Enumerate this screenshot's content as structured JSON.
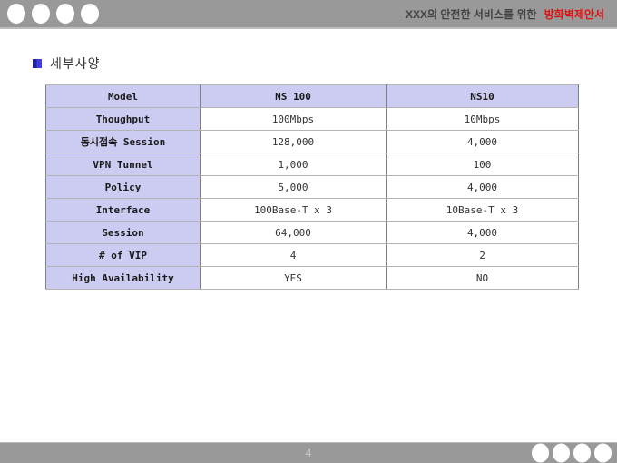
{
  "slide": {
    "header": {
      "title_prefix": "XXX의 안전한 서비스를 위한",
      "title_highlight": "방화벽제안서"
    },
    "section": {
      "title": "세부사양"
    },
    "table": {
      "columns": [
        "Model",
        "NS 100",
        "NS10"
      ],
      "rows": [
        [
          "Thoughput",
          "100Mbps",
          "10Mbps"
        ],
        [
          "동시접속 Session",
          "128,000",
          "4,000"
        ],
        [
          "VPN Tunnel",
          "1,000",
          "100"
        ],
        [
          "Policy",
          "5,000",
          "4,000"
        ],
        [
          "Interface",
          "100Base-T x 3",
          "10Base-T x 3"
        ],
        [
          "Session",
          "64,000",
          "4,000"
        ],
        [
          "# of VIP",
          "4",
          "2"
        ],
        [
          "High Availability",
          "YES",
          "NO"
        ]
      ]
    },
    "footer": {
      "page_number": "4"
    },
    "colors": {
      "bar_gray": "#999999",
      "header_text": "#424242",
      "highlight_red": "#dd1414",
      "cell_lavender": "#ccccf2",
      "border_dark": "#7f7f7f",
      "border_light": "#b3b3b3"
    }
  }
}
